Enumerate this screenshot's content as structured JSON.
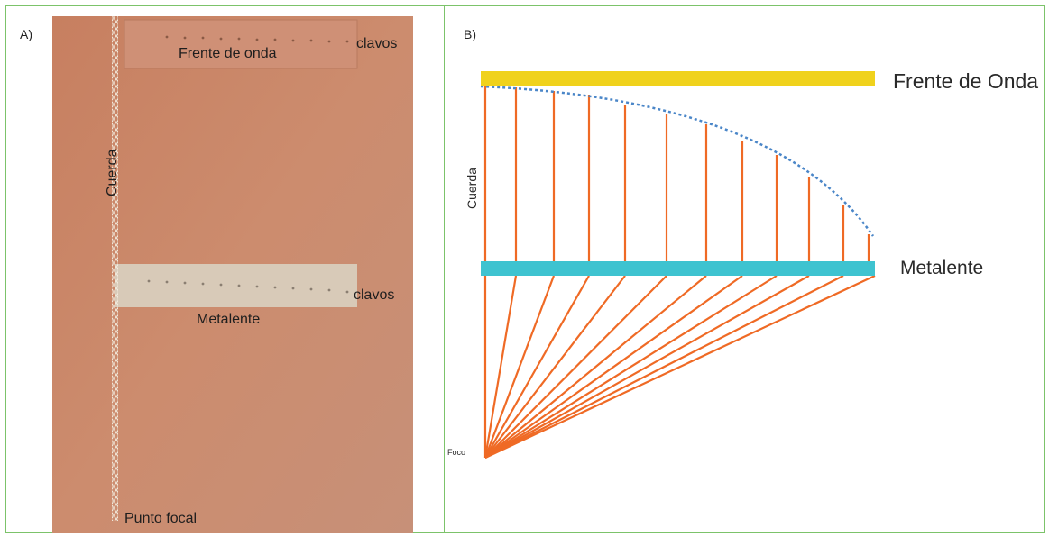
{
  "panel_a": {
    "label": "A)",
    "photo_labels": {
      "wavefront": "Frente de onda",
      "nails_top": "clavos",
      "string": "Cuerda",
      "metalens": "Metalente",
      "nails_bottom": "clavos",
      "focal_point": "Punto focal"
    },
    "colors": {
      "board": "#c98a6c",
      "strip": "#d7c9b6",
      "chain": "#e8e0d0"
    }
  },
  "panel_b": {
    "label": "B)",
    "labels": {
      "wavefront": "Frente de Onda",
      "string": "Cuerda",
      "metalens": "Metalente",
      "focus": "Foco"
    },
    "colors": {
      "wavefront_bar": "#f0d21c",
      "metalens_bar": "#3ec3d0",
      "string": "#ef6a25",
      "dashed_curve": "#4a86c8"
    }
  }
}
